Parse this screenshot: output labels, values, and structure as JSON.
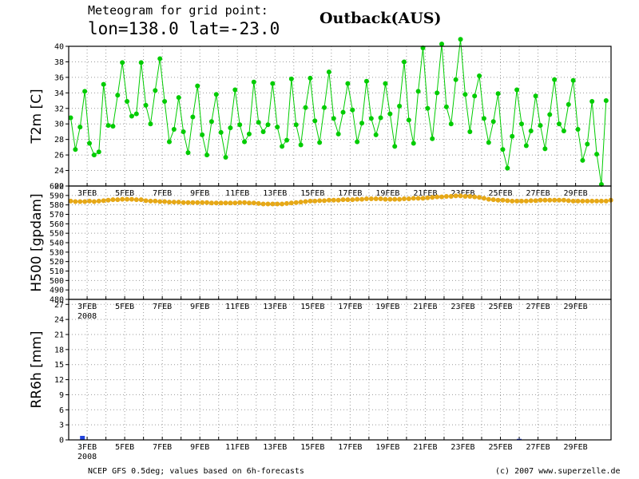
{
  "header": {
    "subtitle": "Meteogram for grid point:",
    "coords": "lon=138.0 lat=-23.0",
    "location": "Outback(AUS)"
  },
  "footer": {
    "source": "NCEP GFS 0.5deg; values based on 6h-forecasts",
    "copyright": "(c) 2007 www.superzelle.de"
  },
  "chart_data": [
    {
      "type": "line",
      "ylabel": "T2m [C]",
      "ylim": [
        22,
        40
      ],
      "yticks": [
        22,
        24,
        26,
        28,
        30,
        32,
        34,
        36,
        38,
        40
      ],
      "grid": true,
      "color": "#00cc00",
      "x_labels": [
        "3FEB",
        "5FEB",
        "7FEB",
        "9FEB",
        "11FEB",
        "13FEB",
        "15FEB",
        "17FEB",
        "19FEB",
        "21FEB",
        "23FEB",
        "25FEB",
        "27FEB",
        "29FEB"
      ],
      "series": [
        {
          "values": [
            30.8,
            26.7,
            29.6,
            34.2,
            27.5,
            26,
            26.4,
            35.1,
            29.8,
            29.7,
            33.7,
            37.9,
            32.9,
            31,
            31.3,
            37.9,
            32.4,
            30,
            34.3,
            38.4,
            32.9,
            27.7,
            29.3,
            33.4,
            29,
            26.3,
            30.9,
            34.9,
            28.6,
            26,
            30.3,
            33.8,
            28.9,
            25.7,
            29.5,
            34.4,
            29.9,
            27.7,
            28.7,
            35.4,
            30.2,
            29,
            29.9,
            35.2,
            29.6,
            27.1,
            27.9,
            35.8,
            29.9,
            27.3,
            32.1,
            35.9,
            30.4,
            27.6,
            32.1,
            36.7,
            30.7,
            28.7,
            31.5,
            35.2,
            31.8,
            27.7,
            30.1,
            35.5,
            30.7,
            28.6,
            30.8,
            35.2,
            31.3,
            27.1,
            32.3,
            38,
            30.5,
            27.5,
            34.2,
            39.8,
            32,
            28.1,
            34,
            40.3,
            32.2,
            30,
            35.7,
            40.9,
            33.8,
            29,
            33.6,
            36.2,
            30.7,
            27.6,
            30.3,
            33.9,
            26.7,
            24.3,
            28.4,
            34.4,
            30,
            27.2,
            29.1,
            33.6,
            29.8,
            26.8,
            31.2,
            35.7,
            30,
            29.1,
            32.5,
            35.6,
            29.3,
            25.3,
            27.4,
            32.9,
            26.1,
            22.2,
            33
          ]
        }
      ]
    },
    {
      "type": "line",
      "ylabel": "H500 [gpdam]",
      "ylim": [
        480,
        600
      ],
      "yticks": [
        480,
        490,
        500,
        510,
        520,
        530,
        540,
        550,
        560,
        570,
        580,
        590,
        600
      ],
      "grid": true,
      "color": "#e6a817",
      "x_labels": [
        "3FEB",
        "5FEB",
        "7FEB",
        "9FEB",
        "11FEB",
        "13FEB",
        "15FEB",
        "17FEB",
        "19FEB",
        "21FEB",
        "23FEB",
        "25FEB",
        "27FEB",
        "29FEB"
      ],
      "year_label": "2008",
      "series": [
        {
          "values": [
            584,
            583.5,
            583.5,
            583.5,
            584,
            583.5,
            584,
            584.5,
            585,
            585.5,
            585.5,
            586,
            586,
            586,
            585.5,
            585.5,
            584.5,
            584,
            584,
            583.5,
            583.5,
            583,
            583,
            583,
            582.5,
            582.5,
            582.5,
            582.5,
            582.5,
            582.5,
            582,
            582,
            582,
            582,
            582,
            582,
            582.5,
            582.5,
            582,
            582,
            581.5,
            581,
            581,
            581,
            581,
            581,
            581.5,
            582,
            582.5,
            583,
            583.5,
            584,
            584,
            584.5,
            584.5,
            585,
            585,
            585,
            585.5,
            585.5,
            585.5,
            586,
            586,
            586.5,
            586.5,
            586.5,
            586.5,
            586,
            586,
            586,
            586,
            586.5,
            586.5,
            587,
            587,
            587,
            587.5,
            588,
            588.5,
            588.5,
            589,
            589,
            589.5,
            589.5,
            589,
            589,
            588.5,
            588,
            587,
            586,
            585.5,
            585,
            585,
            584.5,
            584,
            584,
            584,
            584,
            584.5,
            584.5,
            585,
            585,
            585,
            585,
            585,
            585,
            584.5,
            584,
            584,
            584,
            584,
            584,
            584,
            584,
            584,
            585
          ]
        }
      ]
    },
    {
      "type": "bar",
      "ylabel": "RR6h [mm]",
      "ylim": [
        0,
        28
      ],
      "yticks": [
        0,
        3,
        6,
        9,
        12,
        15,
        18,
        21,
        24,
        27
      ],
      "grid": true,
      "color": "#2244dd",
      "x_labels": [
        "3FEB",
        "5FEB",
        "7FEB",
        "9FEB",
        "11FEB",
        "13FEB",
        "15FEB",
        "17FEB",
        "19FEB",
        "21FEB",
        "23FEB",
        "25FEB",
        "27FEB",
        "29FEB"
      ],
      "year_label": "2008",
      "series": [
        {
          "x": [
            "2FEB 18h",
            "26FEB 00h"
          ],
          "values": [
            0.8,
            0.2
          ]
        }
      ]
    }
  ]
}
